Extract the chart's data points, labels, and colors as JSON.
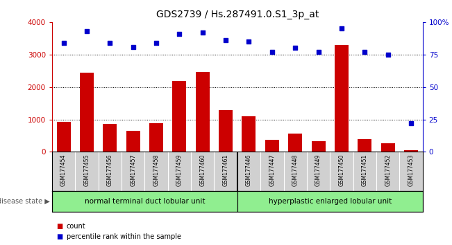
{
  "title": "GDS2739 / Hs.287491.0.S1_3p_at",
  "samples": [
    "GSM177454",
    "GSM177455",
    "GSM177456",
    "GSM177457",
    "GSM177458",
    "GSM177459",
    "GSM177460",
    "GSM177461",
    "GSM177446",
    "GSM177447",
    "GSM177448",
    "GSM177449",
    "GSM177450",
    "GSM177451",
    "GSM177452",
    "GSM177453"
  ],
  "counts": [
    920,
    2450,
    860,
    640,
    880,
    2180,
    2460,
    1300,
    1090,
    380,
    560,
    340,
    3300,
    400,
    260,
    60
  ],
  "percentiles": [
    84,
    93,
    84,
    81,
    84,
    91,
    92,
    86,
    85,
    77,
    80,
    77,
    95,
    77,
    75,
    22
  ],
  "group1_label": "normal terminal duct lobular unit",
  "group2_label": "hyperplastic enlarged lobular unit",
  "group1_count": 8,
  "group2_count": 8,
  "ylim_left": [
    0,
    4000
  ],
  "ylim_right": [
    0,
    100
  ],
  "yticks_left": [
    0,
    1000,
    2000,
    3000,
    4000
  ],
  "yticks_right": [
    0,
    25,
    50,
    75,
    100
  ],
  "bar_color": "#cc0000",
  "scatter_color": "#0000cc",
  "group_bg": "#90ee90",
  "tick_bg": "#d0d0d0",
  "disease_state_label": "disease state",
  "legend_bar_label": "count",
  "legend_scatter_label": "percentile rank within the sample",
  "title_fontsize": 10,
  "axis_color_left": "#cc0000",
  "axis_color_right": "#0000cc"
}
